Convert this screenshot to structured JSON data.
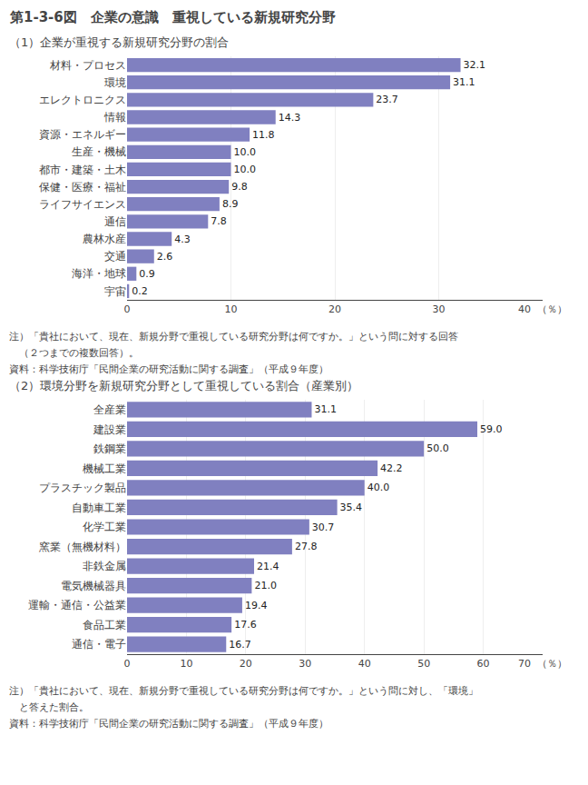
{
  "chart_data": [
    {
      "type": "bar",
      "orientation": "horizontal",
      "title": "第1-3-6図　企業の意識　重視している新規研究分野",
      "subtitle": "（1）企業が重視する新規研究分野の割合",
      "categories": [
        "材料・プロセス",
        "環境",
        "エレクトロニクス",
        "情報",
        "資源・エネルギー",
        "生産・機械",
        "都市・建築・土木",
        "保健・医療・福祉",
        "ライフサイエンス",
        "通信",
        "農林水産",
        "交通",
        "海洋・地球",
        "宇宙"
      ],
      "values": [
        32.1,
        31.1,
        23.7,
        14.3,
        11.8,
        10.0,
        10.0,
        9.8,
        8.9,
        7.8,
        4.3,
        2.6,
        0.9,
        0.2
      ],
      "value_labels": [
        "32.1",
        "31.1",
        "23.7",
        "14.3",
        "11.8",
        "10.0",
        "10.0",
        "9.8",
        "8.9",
        "7.8",
        "4.3",
        "2.6",
        "0.9",
        "0.2"
      ],
      "data_labels": true,
      "color": "#8080c0",
      "xlim": [
        0,
        40
      ],
      "xticks": [
        0,
        10,
        20,
        30,
        {
          "value": 40,
          "label": "40  （％）"
        }
      ],
      "grid": true,
      "annotations": [
        "注）「貴社において、現在、新規分野で重視している研究分野は何ですか。」という問に対する回答",
        "　（２つまでの複数回答）。",
        "資料：科学技術庁「民間企業の研究活動に関する調査」（平成９年度）"
      ]
    },
    {
      "type": "bar",
      "orientation": "horizontal",
      "subtitle": "（2）環境分野を新規研究分野として重視している割合（産業別）",
      "categories": [
        "全産業",
        "建設業",
        "鉄鋼業",
        "機械工業",
        "プラスチック製品",
        "自動車工業",
        "化学工業",
        "窯業（無機材料）",
        "非鉄金属",
        "電気機械器具",
        "運輸・通信・公益業",
        "食品工業",
        "通信・電子"
      ],
      "values": [
        31.1,
        59.0,
        50.0,
        42.2,
        40.0,
        35.4,
        30.7,
        27.8,
        21.4,
        21.0,
        19.4,
        17.6,
        16.7
      ],
      "value_labels": [
        "31.1",
        "59.0",
        "50.0",
        "42.2",
        "40.0",
        "35.4",
        "30.7",
        "27.8",
        "21.4",
        "21.0",
        "19.4",
        "17.6",
        "16.7"
      ],
      "data_labels": true,
      "color": "#8080c0",
      "xlim": [
        0,
        70
      ],
      "xticks": [
        0,
        10,
        20,
        30,
        40,
        50,
        60,
        {
          "value": 70,
          "label": "70  （％）"
        }
      ],
      "grid": true,
      "annotations": [
        "注）「貴社において、現在、新規分野で重視している研究分野は何ですか。」という問に対し、「環境」",
        "　と答えた割合。",
        "資料：科学技術庁「民間企業の研究活動に関する調査」（平成９年度）"
      ]
    }
  ]
}
